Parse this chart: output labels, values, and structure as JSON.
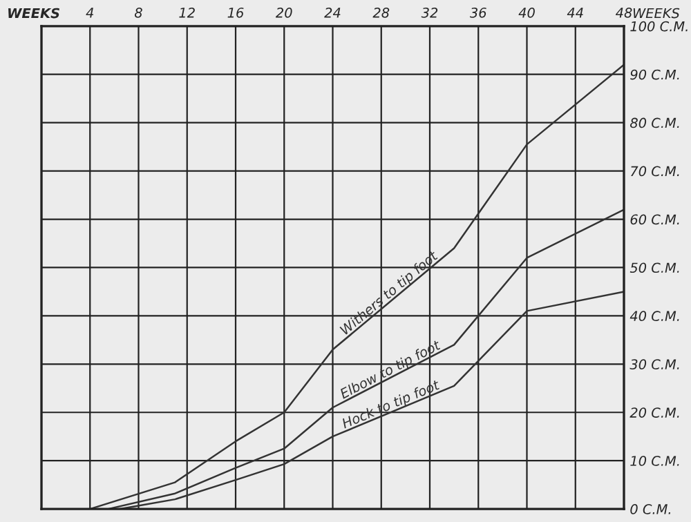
{
  "chart_data": {
    "type": "line",
    "xlabel": "WEEKS",
    "annotations": [
      "WEEKS"
    ],
    "series": [
      {
        "name": "Withers to tip foot",
        "color": "#333333",
        "x": [
          4,
          11,
          16,
          20,
          24,
          34,
          40,
          48
        ],
        "values": [
          0,
          5.5,
          14,
          20,
          33,
          54,
          75.5,
          92
        ]
      },
      {
        "name": "Elbow to tip foot",
        "color": "#333333",
        "x": [
          5.5,
          11,
          16,
          20,
          24,
          34,
          40,
          48
        ],
        "values": [
          0,
          3.2,
          8.5,
          12.5,
          21,
          34,
          52,
          62
        ]
      },
      {
        "name": "Hock to tip foot",
        "color": "#333333",
        "x": [
          6.5,
          11,
          16,
          20,
          24,
          34,
          40,
          48
        ],
        "values": [
          0,
          2,
          6,
          9.3,
          15,
          25.5,
          41,
          45
        ]
      }
    ],
    "xlim": [
      0,
      48
    ],
    "xticks": [
      {
        "value": 0,
        "label": null
      },
      4,
      8,
      12,
      16,
      20,
      24,
      28,
      32,
      36,
      40,
      44,
      48
    ],
    "ylim": [
      0,
      100
    ],
    "yticks": [
      {
        "value": 0,
        "label": "0 C.M."
      },
      {
        "value": 10,
        "label": "10 C.M."
      },
      {
        "value": 20,
        "label": "20 C.M."
      },
      {
        "value": 30,
        "label": "30 C.M."
      },
      {
        "value": 40,
        "label": "40 C.M."
      },
      {
        "value": 50,
        "label": "50 C.M."
      },
      {
        "value": 60,
        "label": "60 C.M."
      },
      {
        "value": 70,
        "label": "70 C.M."
      },
      {
        "value": 80,
        "label": "80 C.M."
      },
      {
        "value": 90,
        "label": "90 C.M."
      },
      {
        "value": 100,
        "label": "100 C.M."
      }
    ],
    "grid": true,
    "marker": "none",
    "line_style": "solid"
  }
}
